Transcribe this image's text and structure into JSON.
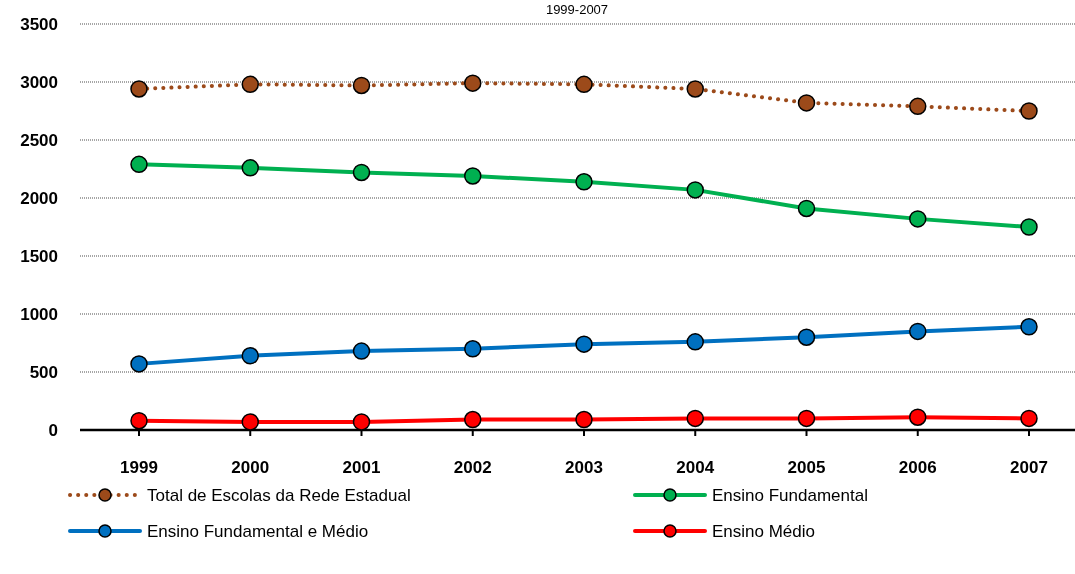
{
  "chart_data": {
    "type": "line",
    "title": "1999-2007",
    "categories": [
      "1999",
      "2000",
      "2001",
      "2002",
      "2003",
      "2004",
      "2005",
      "2006",
      "2007"
    ],
    "series": [
      {
        "name": "Total de Escolas da Rede Estadual",
        "color": "#9c4a1a",
        "line_style": "dotted",
        "values": [
          2940,
          2980,
          2970,
          2990,
          2980,
          2940,
          2820,
          2790,
          2750
        ]
      },
      {
        "name": "Ensino Fundamental",
        "color": "#00b050",
        "values": [
          2290,
          2260,
          2220,
          2190,
          2140,
          2070,
          1910,
          1820,
          1750
        ]
      },
      {
        "name": "Ensino Fundamental e Médio",
        "color": "#0070c0",
        "values": [
          570,
          640,
          680,
          700,
          740,
          760,
          800,
          850,
          890
        ]
      },
      {
        "name": "Ensino Médio",
        "color": "#ff0000",
        "values": [
          80,
          70,
          70,
          90,
          90,
          100,
          100,
          110,
          100
        ]
      }
    ],
    "ylim": [
      0,
      3500
    ],
    "yticks": [
      0,
      500,
      1000,
      1500,
      2000,
      2500,
      3000,
      3500
    ],
    "grid": "y",
    "legend": "bottom",
    "marker": "circle",
    "line_style": "solid"
  }
}
